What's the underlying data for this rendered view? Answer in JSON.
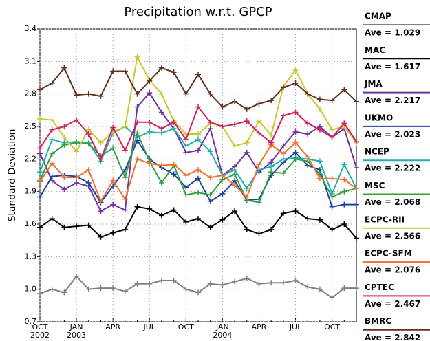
{
  "chart_data": {
    "type": "line",
    "title": "Precipitation w.r.t. GPCP",
    "y_label": "Standard Deviation",
    "categories": [
      "OCT",
      null,
      null,
      "JAN",
      null,
      null,
      "APR",
      null,
      null,
      "JUL",
      null,
      null,
      "OCT",
      null,
      null,
      "JAN",
      null,
      null,
      "APR",
      null,
      null,
      "JUL",
      null,
      null,
      "OCT",
      null,
      null
    ],
    "years": [
      "2002",
      null,
      null,
      "2003",
      null,
      null,
      null,
      null,
      null,
      null,
      null,
      null,
      null,
      null,
      null,
      "2004",
      null,
      null,
      null,
      null,
      null,
      null,
      null,
      null,
      null,
      null,
      null
    ],
    "ylim": [
      0.7,
      3.4
    ],
    "yticks": [
      0.7,
      {
        "value": 1,
        "label": "1.0"
      },
      1.3,
      1.6,
      1.9,
      2.2,
      2.5,
      2.8,
      3.1,
      3.4
    ],
    "grid": true,
    "series": [
      {
        "name": "CMAP",
        "legend_text": "Ave = 1.029",
        "color": "#808080",
        "values": [
          0.96,
          1.0,
          0.97,
          1.12,
          1.0,
          1.01,
          1.01,
          0.98,
          1.05,
          1.05,
          1.08,
          1.08,
          1.0,
          0.97,
          1.05,
          1.04,
          1.07,
          1.1,
          1.05,
          1.06,
          1.06,
          1.08,
          1.02,
          1.0,
          0.92,
          1.01,
          1.01
        ]
      },
      {
        "name": "MAC",
        "legend_text": "Ave = 1.617",
        "color": "#000000",
        "values": [
          1.57,
          1.65,
          1.57,
          1.58,
          1.59,
          1.48,
          1.52,
          1.55,
          1.76,
          1.74,
          1.68,
          1.73,
          1.62,
          1.65,
          1.57,
          1.64,
          1.72,
          1.55,
          1.51,
          1.55,
          1.7,
          1.72,
          1.65,
          1.64,
          1.55,
          1.6,
          1.47
        ]
      },
      {
        "name": "JMA",
        "legend_text": "Ave = 2.217",
        "color": "#7030a0",
        "values": [
          2.25,
          2.0,
          1.92,
          1.98,
          1.95,
          1.72,
          1.78,
          1.73,
          2.68,
          2.81,
          2.63,
          2.48,
          2.26,
          2.28,
          2.48,
          2.05,
          2.13,
          2.26,
          2.08,
          2.17,
          2.32,
          2.45,
          2.43,
          2.5,
          2.4,
          2.48,
          2.12
        ]
      },
      {
        "name": "UKMO",
        "legend_text": "Ave = 2.023",
        "color": "#2040a0",
        "values": [
          1.85,
          2.04,
          2.05,
          2.04,
          1.98,
          1.8,
          1.95,
          2.1,
          2.37,
          2.2,
          2.12,
          2.06,
          1.94,
          2.02,
          1.81,
          1.88,
          2.0,
          1.82,
          1.83,
          2.05,
          2.17,
          2.26,
          2.14,
          2.1,
          1.76,
          1.78,
          1.78
        ]
      },
      {
        "name": "NCEP",
        "legend_text": "Ave = 2.222",
        "color": "#20b0b0",
        "values": [
          2.08,
          2.38,
          2.35,
          2.36,
          2.35,
          2.18,
          2.44,
          2.5,
          2.4,
          2.45,
          2.44,
          2.48,
          2.32,
          2.38,
          2.27,
          2.05,
          2.1,
          1.93,
          2.1,
          2.13,
          2.2,
          2.21,
          2.2,
          2.18,
          1.88,
          2.15,
          1.93
        ]
      },
      {
        "name": "MSC",
        "legend_text": "Ave = 2.068",
        "color": "#30a040",
        "values": [
          2.0,
          2.25,
          2.33,
          2.35,
          2.34,
          2.23,
          2.3,
          2.03,
          2.44,
          2.18,
          1.98,
          2.14,
          1.87,
          1.89,
          1.87,
          2.01,
          2.06,
          1.82,
          1.8,
          2.08,
          2.07,
          2.2,
          2.18,
          2.06,
          1.85,
          1.9,
          1.93
        ]
      },
      {
        "name": "ECPC-RII",
        "legend_text": "Ave = 2.566",
        "color": "#c8c830",
        "values": [
          2.57,
          2.56,
          2.4,
          2.27,
          2.47,
          2.35,
          2.45,
          2.5,
          3.14,
          2.93,
          2.8,
          2.55,
          2.43,
          2.43,
          2.53,
          2.5,
          2.32,
          2.35,
          2.55,
          2.42,
          2.87,
          3.02,
          2.8,
          2.66,
          2.47,
          2.5,
          2.35
        ]
      },
      {
        "name": "ECPC-SFM",
        "legend_text": "Ave = 2.076",
        "color": "#f07030",
        "values": [
          1.99,
          2.16,
          2.03,
          2.03,
          2.1,
          1.81,
          2.0,
          1.83,
          2.2,
          2.16,
          2.14,
          2.15,
          2.05,
          2.1,
          2.03,
          2.05,
          1.96,
          1.85,
          2.15,
          2.33,
          2.25,
          2.35,
          2.22,
          2.02,
          2.02,
          2.01,
          1.93
        ]
      },
      {
        "name": "CPTEC",
        "legend_text": "Ave = 2.467",
        "color": "#d02060",
        "values": [
          2.3,
          2.47,
          2.5,
          2.56,
          2.43,
          2.2,
          2.49,
          2.28,
          2.54,
          2.54,
          2.48,
          2.54,
          2.38,
          2.68,
          2.54,
          2.5,
          2.52,
          2.55,
          2.44,
          2.35,
          2.6,
          2.63,
          2.53,
          2.47,
          2.4,
          2.53,
          2.36
        ]
      },
      {
        "name": "BMRC",
        "legend_text": "Ave = 2.842",
        "color": "#603020",
        "values": [
          2.84,
          2.9,
          3.04,
          2.79,
          2.8,
          2.78,
          3.01,
          3.01,
          2.8,
          2.92,
          3.04,
          3.0,
          2.8,
          2.98,
          2.8,
          2.68,
          2.73,
          2.66,
          2.71,
          2.74,
          2.86,
          2.9,
          2.8,
          2.75,
          2.74,
          2.84,
          2.73
        ]
      }
    ]
  }
}
